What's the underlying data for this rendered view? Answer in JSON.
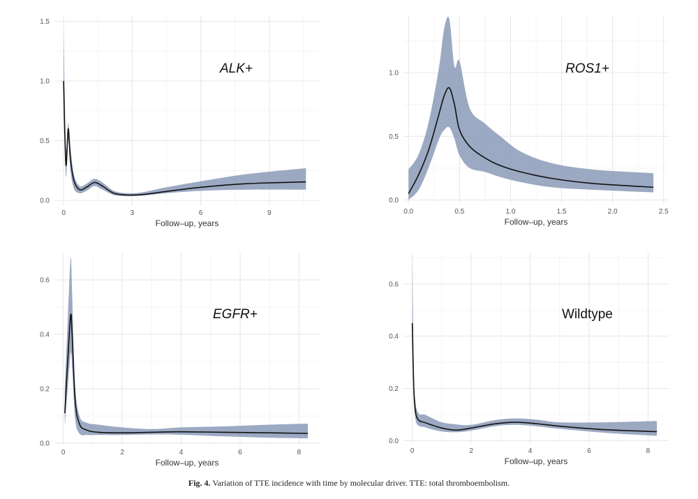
{
  "figure": {
    "caption_label": "Fig. 4.",
    "caption_text": "Variation of TTE incidence with time by molecular driver. TTE: total thromboembolism."
  },
  "colors": {
    "band": "#8b9ab8",
    "curve": "#111111",
    "grid": "#e6e6e6"
  },
  "chart_data": [
    {
      "type": "area",
      "title": "ALK+",
      "title_style": "italic",
      "xlabel": "Follow–up, years",
      "ylabel": "",
      "xlim": [
        -0.4,
        11.2
      ],
      "ylim": [
        -0.04,
        1.55
      ],
      "xticks": [
        0,
        3,
        6,
        9
      ],
      "yticks": [
        0.0,
        0.5,
        1.0,
        1.5
      ],
      "xtick_labels": [
        "0",
        "3",
        "6",
        "9"
      ],
      "ytick_labels": [
        "0.0",
        "0.5",
        "1.0",
        "1.5"
      ],
      "grid": true,
      "series": [
        {
          "x": [
            0,
            0.1,
            0.2,
            0.3,
            0.45,
            0.7,
            1.0,
            1.35,
            1.7,
            2.2,
            2.8,
            3.5,
            4.5,
            6,
            8,
            10.6
          ],
          "y": [
            1.0,
            0.3,
            0.6,
            0.35,
            0.17,
            0.09,
            0.11,
            0.15,
            0.12,
            0.06,
            0.045,
            0.05,
            0.075,
            0.11,
            0.14,
            0.155
          ],
          "lower": [
            0.92,
            0.2,
            0.5,
            0.25,
            0.1,
            0.06,
            0.08,
            0.12,
            0.09,
            0.045,
            0.035,
            0.04,
            0.06,
            0.08,
            0.09,
            0.09
          ],
          "upper": [
            1.45,
            0.45,
            0.65,
            0.45,
            0.22,
            0.12,
            0.14,
            0.18,
            0.15,
            0.08,
            0.06,
            0.07,
            0.11,
            0.16,
            0.22,
            0.27
          ]
        }
      ]
    },
    {
      "type": "area",
      "title": "ROS1+",
      "title_style": "italic",
      "xlabel": "Follow–up, years",
      "ylabel": "",
      "xlim": [
        -0.05,
        2.55
      ],
      "ylim": [
        -0.03,
        1.45
      ],
      "xticks": [
        0.0,
        0.5,
        1.0,
        1.5,
        2.0,
        2.5
      ],
      "yticks": [
        0.0,
        0.5,
        1.0
      ],
      "xtick_labels": [
        "0.0",
        "0.5",
        "1.0",
        "1.5",
        "2.0",
        "2.5"
      ],
      "ytick_labels": [
        "0.0",
        "0.5",
        "1.0"
      ],
      "grid": true,
      "series": [
        {
          "x": [
            0.0,
            0.1,
            0.2,
            0.3,
            0.35,
            0.4,
            0.45,
            0.5,
            0.6,
            0.75,
            0.9,
            1.1,
            1.4,
            1.8,
            2.4
          ],
          "y": [
            0.05,
            0.2,
            0.4,
            0.68,
            0.82,
            0.88,
            0.75,
            0.55,
            0.42,
            0.33,
            0.27,
            0.22,
            0.17,
            0.13,
            0.1
          ],
          "lower": [
            0.0,
            0.08,
            0.26,
            0.48,
            0.55,
            0.57,
            0.48,
            0.35,
            0.25,
            0.22,
            0.18,
            0.14,
            0.1,
            0.08,
            0.06
          ],
          "upper": [
            0.24,
            0.36,
            0.62,
            1.05,
            1.35,
            1.42,
            1.05,
            1.09,
            0.72,
            0.6,
            0.5,
            0.38,
            0.29,
            0.24,
            0.21
          ]
        }
      ]
    },
    {
      "type": "area",
      "title": "EGFR+",
      "title_style": "italic",
      "xlabel": "Follow–up, years",
      "ylabel": "",
      "xlim": [
        -0.3,
        8.7
      ],
      "ylim": [
        -0.005,
        0.7
      ],
      "xticks": [
        0,
        2,
        4,
        6,
        8
      ],
      "yticks": [
        0.0,
        0.2,
        0.4,
        0.6
      ],
      "xtick_labels": [
        "0",
        "2",
        "4",
        "6",
        "8"
      ],
      "ytick_labels": [
        "0.0",
        "0.2",
        "0.4",
        "0.6"
      ],
      "grid": true,
      "series": [
        {
          "x": [
            0.05,
            0.15,
            0.25,
            0.3,
            0.4,
            0.55,
            0.8,
            1.2,
            2.0,
            3.0,
            4.0,
            5.5,
            7.0,
            8.3
          ],
          "y": [
            0.11,
            0.3,
            0.47,
            0.4,
            0.16,
            0.07,
            0.048,
            0.04,
            0.038,
            0.04,
            0.042,
            0.04,
            0.038,
            0.036
          ],
          "lower": [
            0.06,
            0.2,
            0.33,
            0.28,
            0.09,
            0.035,
            0.03,
            0.03,
            0.03,
            0.032,
            0.031,
            0.025,
            0.02,
            0.018
          ],
          "upper": [
            0.2,
            0.45,
            0.68,
            0.55,
            0.22,
            0.1,
            0.075,
            0.068,
            0.058,
            0.052,
            0.058,
            0.062,
            0.068,
            0.072
          ]
        }
      ]
    },
    {
      "type": "area",
      "title": "Wildtype",
      "title_style": "normal",
      "xlabel": "Follow–up, years",
      "ylabel": "",
      "xlim": [
        -0.3,
        8.7
      ],
      "ylim": [
        -0.01,
        0.72
      ],
      "xticks": [
        0,
        2,
        4,
        6,
        8
      ],
      "yticks": [
        0.0,
        0.2,
        0.4,
        0.6
      ],
      "xtick_labels": [
        "0",
        "2",
        "4",
        "6",
        "8"
      ],
      "ytick_labels": [
        "0.0",
        "0.2",
        "0.4",
        "0.6"
      ],
      "grid": true,
      "series": [
        {
          "x": [
            0,
            0.05,
            0.1,
            0.15,
            0.25,
            0.4,
            0.6,
            1.0,
            1.5,
            2.0,
            2.8,
            3.5,
            4.2,
            5.0,
            6.5,
            8.3
          ],
          "y": [
            0.45,
            0.2,
            0.12,
            0.09,
            0.075,
            0.07,
            0.062,
            0.048,
            0.04,
            0.048,
            0.064,
            0.07,
            0.065,
            0.055,
            0.042,
            0.034
          ],
          "lower": [
            0.35,
            0.15,
            0.09,
            0.065,
            0.055,
            0.052,
            0.045,
            0.035,
            0.032,
            0.038,
            0.055,
            0.06,
            0.055,
            0.045,
            0.03,
            0.018
          ],
          "upper": [
            0.72,
            0.28,
            0.16,
            0.12,
            0.1,
            0.1,
            0.09,
            0.07,
            0.062,
            0.06,
            0.078,
            0.085,
            0.08,
            0.07,
            0.07,
            0.075
          ]
        }
      ]
    }
  ]
}
